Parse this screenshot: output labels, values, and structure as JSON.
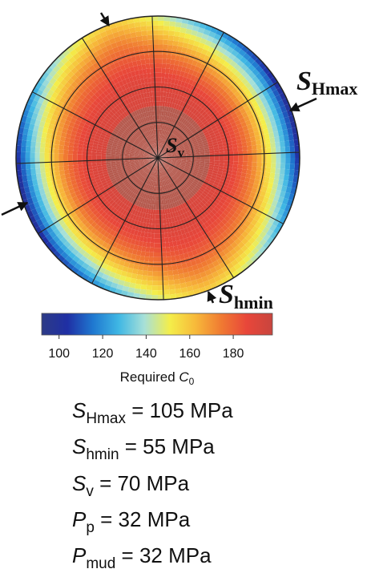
{
  "chart_data": {
    "type": "heatmap",
    "plot_kind": "polar stereonet (lower hemisphere)",
    "colorbar": {
      "label_prefix": "Required ",
      "label_symbol": "C",
      "label_sub": "0",
      "range": [
        92,
        198
      ],
      "ticks": [
        "100",
        "120",
        "140",
        "160",
        "180"
      ],
      "tick_values": [
        100,
        120,
        140,
        160,
        180
      ],
      "colors": [
        "#2d3b86",
        "#1f2fa4",
        "#1f78d0",
        "#3fb7e4",
        "#a7e0d8",
        "#f4ee4a",
        "#f7b93a",
        "#f07a32",
        "#e8463a",
        "#c8453e"
      ]
    },
    "field": {
      "center_value": 187,
      "min_value": 95,
      "max_value": 192,
      "minimum_direction": "SHmax azimuth (left-right band edges)",
      "note_colors": {
        "center": "#b55a4e",
        "mid_ring": "#e8463a"
      }
    },
    "grid": {
      "radial_spokes": 12,
      "concentric_rings": 3
    },
    "stress_labels": {
      "SHmax": {
        "main": "S",
        "sub": "Hmax"
      },
      "Shmin": {
        "main": "S",
        "sub": "hmin"
      },
      "Sv": {
        "main": "S",
        "sub": "v"
      }
    },
    "parameters": [
      {
        "symbol": "S",
        "sub": "Hmax",
        "text": " = 105 MPa"
      },
      {
        "symbol": "S",
        "sub": "hmin",
        "text": " = 55 MPa"
      },
      {
        "symbol": "S",
        "sub": "v",
        "text": " = 70 MPa"
      },
      {
        "symbol": "P",
        "sub": "p",
        "text": " = 32 MPa"
      },
      {
        "symbol": "P",
        "sub": "mud",
        "text": " = 32 MPa"
      }
    ]
  }
}
